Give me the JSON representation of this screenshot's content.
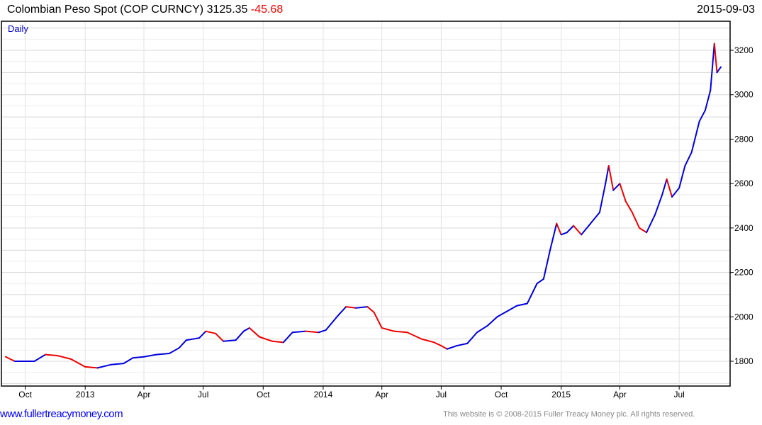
{
  "header": {
    "title": "Colombian Peso Spot (COP CURNCY)",
    "last": "3125.35",
    "change": "-45.68",
    "date": "2015-09-03"
  },
  "footer": {
    "link": "www.fullertreacymoney.com",
    "copyright": "This website is © 2008-2015 Fuller Treacy Money plc. All rights reserved."
  },
  "chart_data": {
    "type": "line",
    "title": "Colombian Peso Spot (COP CURNCY)",
    "period_label": "Daily",
    "up_color": "#0000dd",
    "down_color": "#ee0000",
    "ylim": [
      1690,
      3330
    ],
    "yticks": [
      1800,
      2000,
      2200,
      2400,
      2600,
      2800,
      3000,
      3200
    ],
    "xrange": [
      "2012-09-01",
      "2015-09-03"
    ],
    "xticks": [
      {
        "label": "Oct",
        "date": "2012-10-01"
      },
      {
        "label": "2013",
        "date": "2013-01-01"
      },
      {
        "label": "Apr",
        "date": "2013-04-01"
      },
      {
        "label": "Jul",
        "date": "2013-07-01"
      },
      {
        "label": "Oct",
        "date": "2013-10-01"
      },
      {
        "label": "2014",
        "date": "2014-01-01"
      },
      {
        "label": "Apr",
        "date": "2014-04-01"
      },
      {
        "label": "Jul",
        "date": "2014-07-01"
      },
      {
        "label": "Oct",
        "date": "2014-10-01"
      },
      {
        "label": "2015",
        "date": "2015-01-01"
      },
      {
        "label": "Apr",
        "date": "2015-04-01"
      },
      {
        "label": "Jul",
        "date": "2015-07-01"
      }
    ],
    "points": [
      [
        "2012-09-01",
        1820
      ],
      [
        "2012-09-15",
        1800
      ],
      [
        "2012-10-15",
        1800
      ],
      [
        "2012-11-01",
        1830
      ],
      [
        "2012-11-20",
        1825
      ],
      [
        "2012-12-10",
        1810
      ],
      [
        "2013-01-01",
        1775
      ],
      [
        "2013-01-20",
        1770
      ],
      [
        "2013-02-10",
        1785
      ],
      [
        "2013-03-01",
        1790
      ],
      [
        "2013-03-15",
        1815
      ],
      [
        "2013-04-01",
        1820
      ],
      [
        "2013-04-20",
        1830
      ],
      [
        "2013-05-10",
        1835
      ],
      [
        "2013-05-25",
        1860
      ],
      [
        "2013-06-05",
        1895
      ],
      [
        "2013-06-25",
        1905
      ],
      [
        "2013-07-05",
        1935
      ],
      [
        "2013-07-20",
        1925
      ],
      [
        "2013-08-01",
        1890
      ],
      [
        "2013-08-20",
        1895
      ],
      [
        "2013-09-01",
        1935
      ],
      [
        "2013-09-10",
        1950
      ],
      [
        "2013-09-25",
        1910
      ],
      [
        "2013-10-15",
        1890
      ],
      [
        "2013-11-01",
        1885
      ],
      [
        "2013-11-15",
        1930
      ],
      [
        "2013-12-05",
        1935
      ],
      [
        "2013-12-25",
        1930
      ],
      [
        "2014-01-05",
        1940
      ],
      [
        "2014-01-25",
        2010
      ],
      [
        "2014-02-05",
        2045
      ],
      [
        "2014-02-20",
        2040
      ],
      [
        "2014-03-10",
        2045
      ],
      [
        "2014-03-20",
        2020
      ],
      [
        "2014-04-01",
        1950
      ],
      [
        "2014-04-20",
        1935
      ],
      [
        "2014-05-10",
        1930
      ],
      [
        "2014-06-01",
        1900
      ],
      [
        "2014-06-20",
        1885
      ],
      [
        "2014-07-01",
        1870
      ],
      [
        "2014-07-10",
        1855
      ],
      [
        "2014-07-25",
        1870
      ],
      [
        "2014-08-10",
        1880
      ],
      [
        "2014-08-25",
        1930
      ],
      [
        "2014-09-10",
        1960
      ],
      [
        "2014-09-25",
        2000
      ],
      [
        "2014-10-10",
        2025
      ],
      [
        "2014-10-25",
        2050
      ],
      [
        "2014-11-10",
        2060
      ],
      [
        "2014-11-25",
        2150
      ],
      [
        "2014-12-05",
        2170
      ],
      [
        "2014-12-15",
        2300
      ],
      [
        "2014-12-25",
        2420
      ],
      [
        "2015-01-01",
        2370
      ],
      [
        "2015-01-10",
        2380
      ],
      [
        "2015-01-20",
        2410
      ],
      [
        "2015-02-01",
        2370
      ],
      [
        "2015-02-15",
        2420
      ],
      [
        "2015-03-01",
        2470
      ],
      [
        "2015-03-10",
        2600
      ],
      [
        "2015-03-15",
        2680
      ],
      [
        "2015-03-22",
        2570
      ],
      [
        "2015-04-01",
        2600
      ],
      [
        "2015-04-10",
        2520
      ],
      [
        "2015-04-20",
        2470
      ],
      [
        "2015-05-01",
        2400
      ],
      [
        "2015-05-12",
        2380
      ],
      [
        "2015-05-25",
        2460
      ],
      [
        "2015-06-05",
        2550
      ],
      [
        "2015-06-12",
        2620
      ],
      [
        "2015-06-20",
        2540
      ],
      [
        "2015-07-01",
        2580
      ],
      [
        "2015-07-10",
        2680
      ],
      [
        "2015-07-20",
        2740
      ],
      [
        "2015-08-01",
        2880
      ],
      [
        "2015-08-10",
        2930
      ],
      [
        "2015-08-18",
        3020
      ],
      [
        "2015-08-24",
        3230
      ],
      [
        "2015-08-28",
        3100
      ],
      [
        "2015-09-03",
        3125
      ]
    ]
  }
}
